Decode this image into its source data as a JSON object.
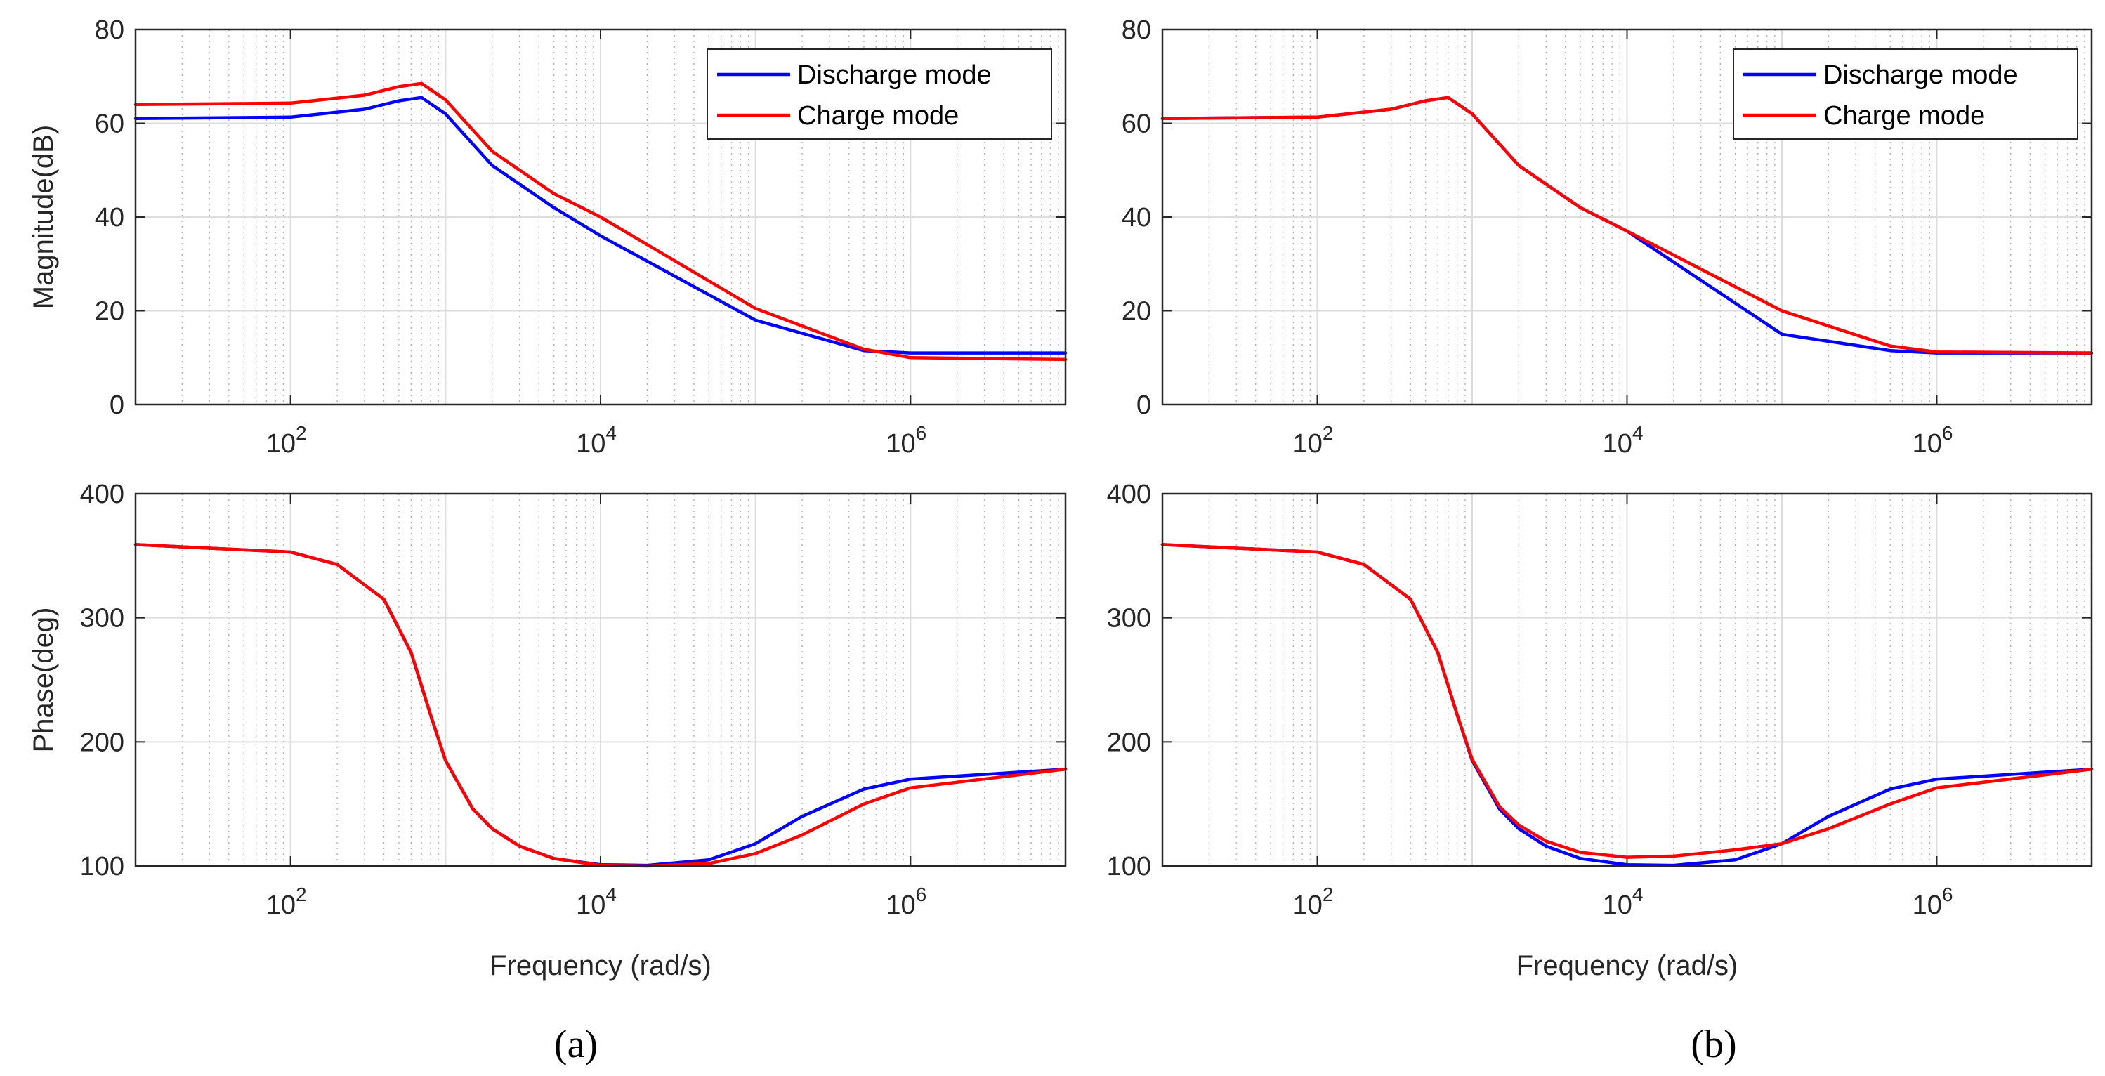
{
  "chart_data": [
    {
      "type": "line",
      "panel": "a",
      "subplot": "magnitude",
      "title": "",
      "xlabel": "",
      "ylabel": "Magnitude(dB)",
      "xscale": "log",
      "xlim": [
        10,
        10000000
      ],
      "ylim": [
        0,
        80
      ],
      "yticks": [
        "0",
        "20",
        "40",
        "60",
        "80"
      ],
      "xticks": [
        {
          "base": "10",
          "exp": "2"
        },
        {
          "base": "10",
          "exp": "4"
        },
        {
          "base": "10",
          "exp": "6"
        }
      ],
      "grid": true,
      "legend": "top-right",
      "series": [
        {
          "name": "Discharge mode",
          "color": "#0000ff",
          "x": [
            10,
            100,
            300,
            500,
            700,
            1000,
            2000,
            5000,
            10000,
            100000,
            500000,
            1000000,
            10000000
          ],
          "y": [
            61,
            61.3,
            63,
            64.8,
            65.5,
            62,
            51,
            42,
            36,
            18,
            11.5,
            11,
            11
          ]
        },
        {
          "name": "Charge mode",
          "color": "#ff0000",
          "x": [
            10,
            100,
            300,
            500,
            700,
            1000,
            2000,
            5000,
            10000,
            100000,
            500000,
            1000000,
            10000000
          ],
          "y": [
            64,
            64.3,
            66,
            67.8,
            68.5,
            65,
            54,
            45,
            40,
            20.5,
            11.8,
            10,
            9.6
          ]
        }
      ]
    },
    {
      "type": "line",
      "panel": "a",
      "subplot": "phase",
      "title": "",
      "xlabel": "Frequency (rad/s)",
      "ylabel": "Phase(deg)",
      "xscale": "log",
      "xlim": [
        10,
        10000000
      ],
      "ylim": [
        100,
        400
      ],
      "yticks": [
        "100",
        "200",
        "300",
        "400"
      ],
      "xticks": [
        {
          "base": "10",
          "exp": "2"
        },
        {
          "base": "10",
          "exp": "4"
        },
        {
          "base": "10",
          "exp": "6"
        }
      ],
      "grid": true,
      "series": [
        {
          "name": "Discharge mode",
          "color": "#0000ff",
          "x": [
            10,
            100,
            200,
            400,
            600,
            800,
            1000,
            1500,
            2000,
            3000,
            5000,
            10000,
            20000,
            50000,
            100000,
            200000,
            500000,
            1000000,
            10000000
          ],
          "y": [
            359,
            353,
            343,
            315,
            272,
            222,
            185,
            146,
            130,
            116,
            106,
            101,
            100.5,
            105,
            118,
            140,
            162,
            170,
            178
          ]
        },
        {
          "name": "Charge mode",
          "color": "#ff0000",
          "x": [
            10,
            100,
            200,
            400,
            600,
            800,
            1000,
            1500,
            2000,
            3000,
            5000,
            10000,
            20000,
            50000,
            100000,
            200000,
            500000,
            1000000,
            10000000
          ],
          "y": [
            359,
            353,
            343,
            315,
            272,
            222,
            185,
            146,
            130,
            116,
            106,
            100.5,
            100,
            102,
            110,
            125,
            150,
            163,
            178
          ]
        }
      ]
    },
    {
      "type": "line",
      "panel": "b",
      "subplot": "magnitude",
      "title": "",
      "xlabel": "",
      "ylabel": "",
      "xscale": "log",
      "xlim": [
        10,
        10000000
      ],
      "ylim": [
        0,
        80
      ],
      "yticks": [
        "0",
        "20",
        "40",
        "60",
        "80"
      ],
      "xticks": [
        {
          "base": "10",
          "exp": "2"
        },
        {
          "base": "10",
          "exp": "4"
        },
        {
          "base": "10",
          "exp": "6"
        }
      ],
      "grid": true,
      "legend": "top-right",
      "series": [
        {
          "name": "Discharge mode",
          "color": "#0000ff",
          "x": [
            10,
            100,
            300,
            500,
            700,
            1000,
            2000,
            5000,
            10000,
            100000,
            500000,
            1000000,
            10000000
          ],
          "y": [
            61,
            61.3,
            63,
            64.8,
            65.5,
            62,
            51,
            42,
            37,
            15,
            11.5,
            11,
            11
          ]
        },
        {
          "name": "Charge mode",
          "color": "#ff0000",
          "x": [
            10,
            100,
            300,
            500,
            700,
            1000,
            2000,
            5000,
            10000,
            100000,
            500000,
            1000000,
            10000000
          ],
          "y": [
            61,
            61.3,
            63,
            64.8,
            65.5,
            62,
            51,
            42,
            37,
            20,
            12.5,
            11.2,
            11
          ]
        }
      ]
    },
    {
      "type": "line",
      "panel": "b",
      "subplot": "phase",
      "title": "",
      "xlabel": "Frequency (rad/s)",
      "ylabel": "",
      "xscale": "log",
      "xlim": [
        10,
        10000000
      ],
      "ylim": [
        100,
        400
      ],
      "yticks": [
        "100",
        "200",
        "300",
        "400"
      ],
      "xticks": [
        {
          "base": "10",
          "exp": "2"
        },
        {
          "base": "10",
          "exp": "4"
        },
        {
          "base": "10",
          "exp": "6"
        }
      ],
      "grid": true,
      "series": [
        {
          "name": "Discharge mode",
          "color": "#0000ff",
          "x": [
            10,
            100,
            200,
            400,
            600,
            800,
            1000,
            1500,
            2000,
            3000,
            5000,
            10000,
            20000,
            50000,
            100000,
            200000,
            500000,
            1000000,
            10000000
          ],
          "y": [
            359,
            353,
            343,
            315,
            272,
            222,
            185,
            146,
            130,
            116,
            106,
            101,
            100.5,
            105,
            118,
            140,
            162,
            170,
            178
          ]
        },
        {
          "name": "Charge mode",
          "color": "#ff0000",
          "x": [
            10,
            100,
            200,
            400,
            600,
            800,
            1000,
            1500,
            2000,
            3000,
            5000,
            10000,
            20000,
            50000,
            100000,
            200000,
            500000,
            1000000,
            10000000
          ],
          "y": [
            359,
            353,
            343,
            315,
            272,
            222,
            186,
            148,
            133,
            120,
            111,
            107,
            108,
            113,
            118,
            130,
            150,
            163,
            178
          ]
        }
      ]
    }
  ],
  "panel_labels": [
    "(a)",
    "(b)"
  ]
}
